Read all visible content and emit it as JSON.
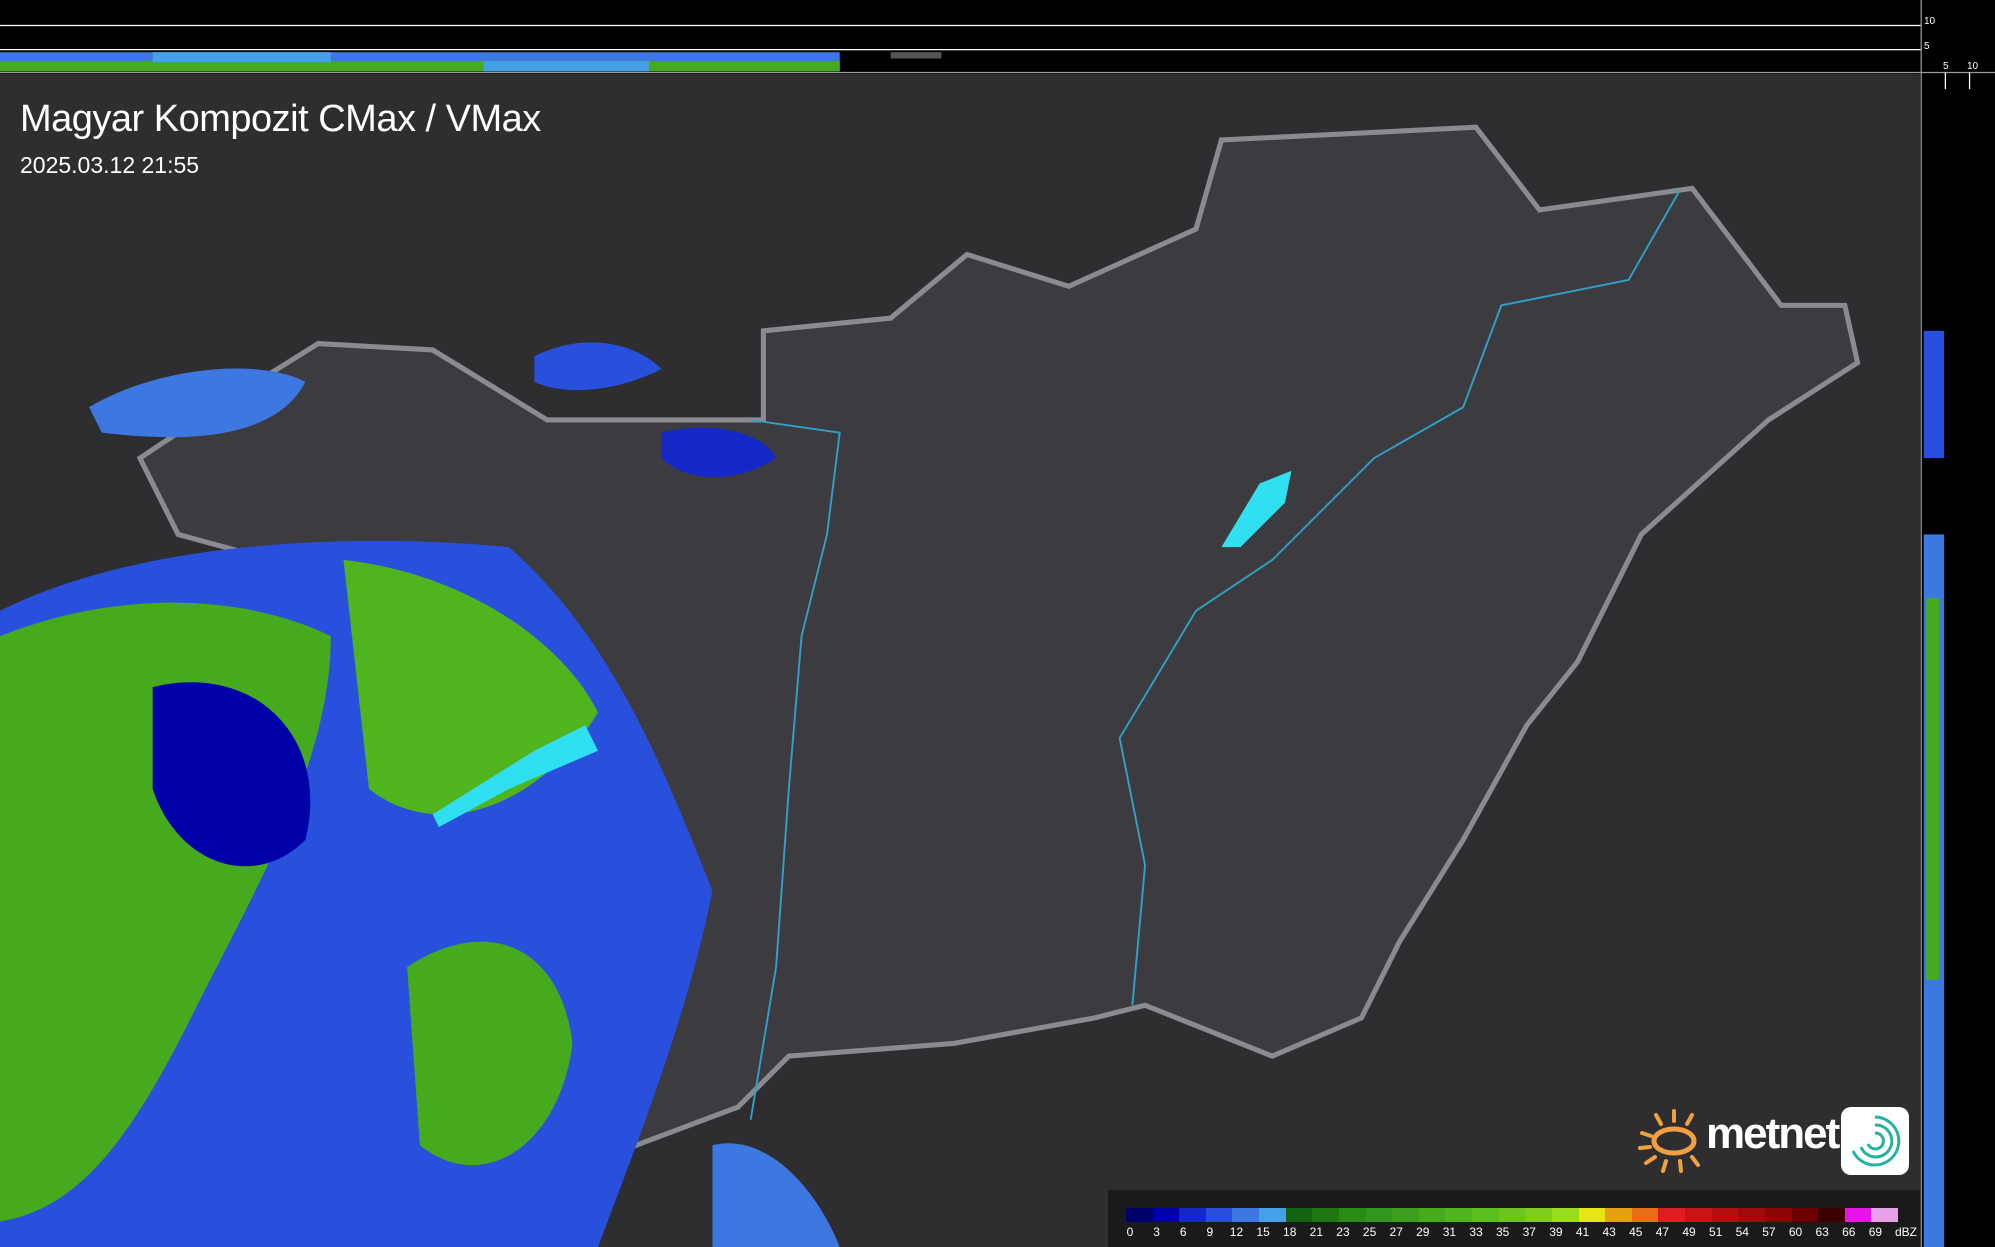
{
  "title": "Magyar Kompozit CMax / VMax",
  "timestamp": "2025.03.12 21:55",
  "side_ticks": {
    "top_10": "10",
    "top_5": "5",
    "right_5": "5",
    "right_10": "10"
  },
  "legend": {
    "unit": "dBZ",
    "labels": [
      "0",
      "3",
      "6",
      "9",
      "12",
      "15",
      "18",
      "21",
      "23",
      "25",
      "27",
      "29",
      "31",
      "33",
      "35",
      "37",
      "39",
      "41",
      "43",
      "45",
      "47",
      "49",
      "51",
      "54",
      "57",
      "60",
      "63",
      "66",
      "69"
    ],
    "colors": [
      "#00006a",
      "#0000a8",
      "#1428c8",
      "#2850dc",
      "#3c78e0",
      "#46a0e8",
      "#146414",
      "#1e780f",
      "#288c14",
      "#32961e",
      "#3ca01e",
      "#46aa1e",
      "#50b41e",
      "#5abe1e",
      "#6cc41e",
      "#80cc1e",
      "#98dc1e",
      "#e6e614",
      "#e6a014",
      "#e66e14",
      "#dc1e1e",
      "#c81414",
      "#b40f0f",
      "#a00a0a",
      "#8c0505",
      "#6e0000",
      "#3c0000",
      "#e614e6",
      "#e8a0e8",
      "#8ce6e6"
    ]
  },
  "logo": {
    "text": "metnet",
    "sun_color": "#f0a040",
    "icon_color": "#2ab0a0"
  },
  "colors": {
    "background": "#2e2e31",
    "country": "#3c3c40",
    "border": "#8a8a90",
    "river": "#30a0c8",
    "lake": "#30e0f0"
  }
}
